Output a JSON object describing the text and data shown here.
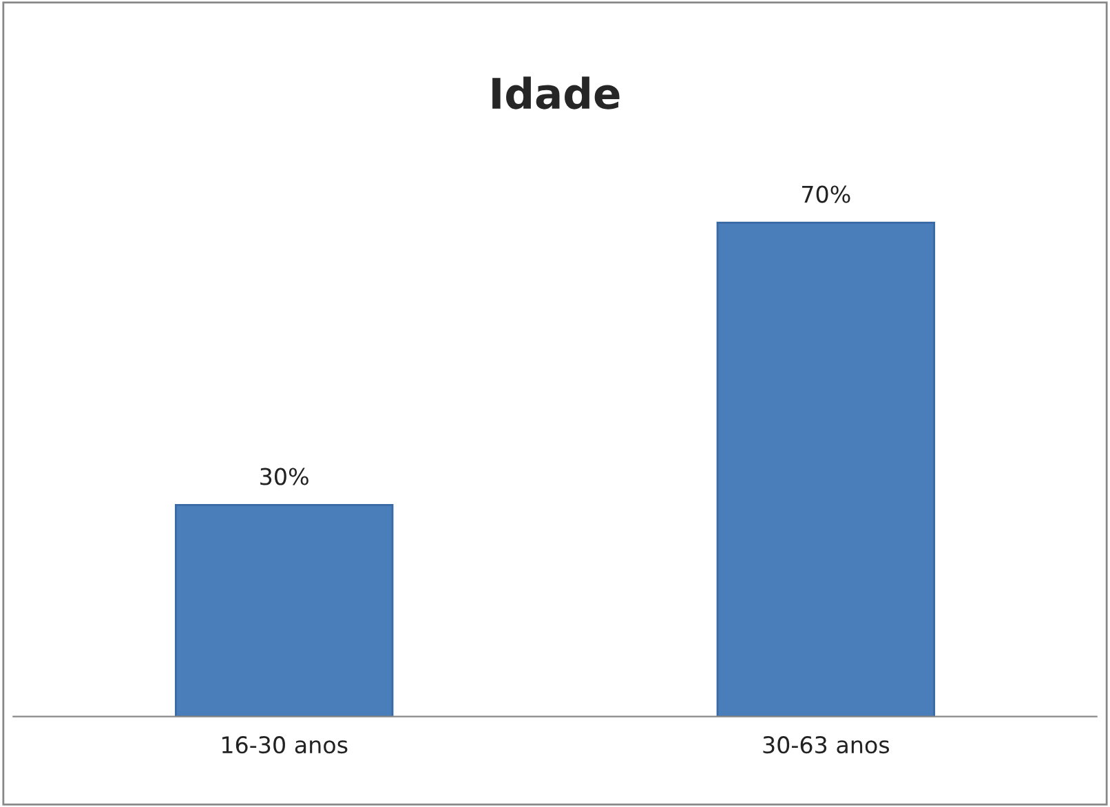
{
  "chart_data": {
    "type": "bar",
    "title": "Idade",
    "categories": [
      "16-30 anos",
      "30-63 anos"
    ],
    "values": [
      30,
      70
    ],
    "value_labels": [
      "30%",
      "70%"
    ],
    "color": "#4a7ebb",
    "grid": false,
    "legend": false
  }
}
